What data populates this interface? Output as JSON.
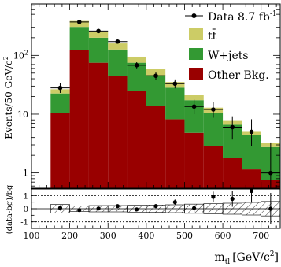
{
  "chart_data": [
    {
      "type": "bar",
      "stacked": true,
      "ylabel": "Events/50 GeV/c²",
      "ylabel_main": "Events/50 GeV/c",
      "ylabel_sup": "2",
      "log_scale": true,
      "ylim": [
        0.55,
        750
      ],
      "xlim": [
        100,
        750
      ],
      "y_ticks": [
        {
          "value": 1,
          "label": "1"
        },
        {
          "value": 10,
          "label": "10"
        },
        {
          "value": 100,
          "label": "10",
          "sup": "2"
        }
      ],
      "bin_edges": [
        150,
        200,
        250,
        300,
        350,
        400,
        450,
        500,
        550,
        600,
        650,
        700,
        750
      ],
      "series": [
        {
          "name": "Other Bkg.",
          "color": "#990000",
          "values": [
            10.5,
            125,
            75,
            44,
            25,
            14,
            8.2,
            4.8,
            2.9,
            1.8,
            1.15,
            0.75
          ]
        },
        {
          "name": "W+jets",
          "color": "#339933",
          "values": [
            12,
            180,
            125,
            82,
            50,
            32,
            20,
            12.5,
            7.7,
            4.8,
            3.2,
            2.0
          ]
        },
        {
          "name": "tt̄",
          "label_main": "t",
          "label_sup": "t̄",
          "color": "#cccc66",
          "values": [
            4,
            80,
            55,
            34,
            20,
            12,
            7,
            4,
            2.3,
            1.3,
            0.8,
            0.5
          ]
        }
      ],
      "data_series": {
        "name": "Data 8.7 fb⁻¹",
        "label_main": "Data 8.7 fb",
        "label_sup": "-1",
        "x": [
          175,
          225,
          275,
          325,
          375,
          425,
          475,
          525,
          575,
          625,
          675,
          725
        ],
        "y": [
          28,
          370,
          260,
          172,
          68,
          45,
          33,
          13.5,
          12,
          6,
          5,
          1
        ],
        "err_low": [
          5,
          19,
          16,
          13,
          8,
          6.5,
          5.5,
          3.5,
          3.3,
          2.3,
          2.1,
          0.8
        ],
        "err_high": [
          5.5,
          19,
          16,
          13,
          8.5,
          7,
          6,
          4.2,
          4,
          3.2,
          3.2,
          2.3
        ]
      },
      "legend_position": "top-right"
    },
    {
      "type": "scatter",
      "ylabel": "(data-bg)/bg",
      "xlabel": "m",
      "xlabel_sub": "tl",
      "xlabel_units": "[GeV/c²]",
      "xlabel_units_main": "[GeV/c",
      "xlabel_units_sup": "2",
      "xlabel_units_end": "]",
      "xlim": [
        100,
        750
      ],
      "ylim": [
        -1.5,
        1.5
      ],
      "x_ticks": [
        100,
        200,
        300,
        400,
        500,
        600,
        700
      ],
      "y_ticks": [
        -1,
        0,
        1
      ],
      "y_tick_labels": [
        "-1",
        "0",
        "1"
      ],
      "dashed_lines": [
        -1,
        1
      ],
      "x": [
        175,
        225,
        275,
        325,
        375,
        425,
        475,
        525,
        575,
        625,
        675,
        725
      ],
      "y": [
        0.06,
        -0.1,
        0.02,
        0.2,
        -0.05,
        0.2,
        0.5,
        0.05,
        0.9,
        0.75,
        1.35,
        0.0
      ],
      "err": [
        0.2,
        0.05,
        0.06,
        0.08,
        0.12,
        0.15,
        0.2,
        0.3,
        0.4,
        0.6,
        0.85,
        1.2
      ],
      "band_half_width": [
        0.32,
        0.22,
        0.24,
        0.24,
        0.26,
        0.28,
        0.3,
        0.35,
        0.38,
        0.42,
        0.48,
        0.55
      ]
    }
  ]
}
